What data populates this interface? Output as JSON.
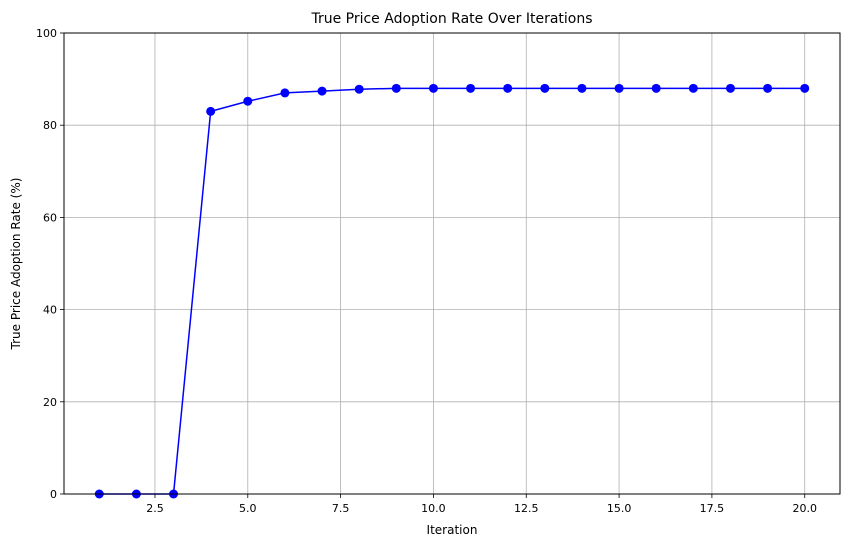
{
  "chart_data": {
    "type": "line",
    "title": "True Price Adoption Rate Over Iterations",
    "xlabel": "Iteration",
    "ylabel": "True Price Adoption Rate (%)",
    "xlim": [
      0.05,
      20.95
    ],
    "ylim": [
      0,
      100
    ],
    "xticks": [
      2.5,
      5.0,
      7.5,
      10.0,
      12.5,
      15.0,
      17.5,
      20.0
    ],
    "xtick_labels": [
      "2.5",
      "5.0",
      "7.5",
      "10.0",
      "12.5",
      "15.0",
      "17.5",
      "20.0"
    ],
    "yticks": [
      0,
      20,
      40,
      60,
      80,
      100
    ],
    "ytick_labels": [
      "0",
      "20",
      "40",
      "60",
      "80",
      "100"
    ],
    "grid": true,
    "series": [
      {
        "color": "#0000ff",
        "marker": "circle",
        "x": [
          1,
          2,
          3,
          4,
          5,
          6,
          7,
          8,
          9,
          10,
          11,
          12,
          13,
          14,
          15,
          16,
          17,
          18,
          19,
          20
        ],
        "y": [
          0,
          0,
          0,
          83.0,
          85.2,
          87.0,
          87.4,
          87.8,
          88.0,
          88.0,
          88.0,
          88.0,
          88.0,
          88.0,
          88.0,
          88.0,
          88.0,
          88.0,
          88.0,
          88.0
        ]
      }
    ]
  }
}
